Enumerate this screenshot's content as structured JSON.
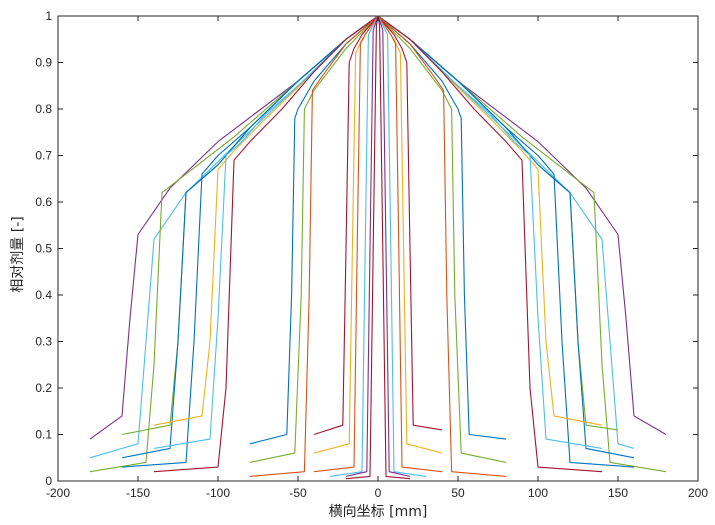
{
  "chart_data": {
    "type": "line",
    "title": "",
    "xlabel": "横向坐标 [mm]",
    "ylabel": "相对剂量 [-]",
    "xlim": [
      -200,
      200
    ],
    "ylim": [
      0,
      1
    ],
    "xticks": [
      -200,
      -150,
      -100,
      -50,
      0,
      50,
      100,
      150,
      200
    ],
    "yticks": [
      0,
      0.1,
      0.2,
      0.3,
      0.4,
      0.5,
      0.6,
      0.7,
      0.8,
      0.9,
      1
    ],
    "xtick_labels": [
      "-200",
      "-150",
      "-100",
      "-50",
      "0",
      "50",
      "100",
      "150",
      "200"
    ],
    "ytick_labels": [
      "0",
      "0.1",
      "0.2",
      "0.3",
      "0.4",
      "0.5",
      "0.6",
      "0.7",
      "0.8",
      "0.9",
      "1"
    ],
    "grid": false,
    "legend": "none",
    "colors": [
      "#0072BD",
      "#D95319",
      "#EDB120",
      "#7E2F8E",
      "#77AC30",
      "#4DBEEE",
      "#A2142F"
    ],
    "series": [
      {
        "color": "#7E2F8E",
        "x": [
          -180,
          -160,
          -155,
          -150,
          -130,
          -100,
          -50,
          -20,
          0,
          20,
          50,
          100,
          130,
          150,
          155,
          160,
          180
        ],
        "y": [
          0.09,
          0.14,
          0.35,
          0.53,
          0.63,
          0.73,
          0.86,
          0.95,
          1,
          0.95,
          0.86,
          0.73,
          0.63,
          0.53,
          0.35,
          0.14,
          0.1
        ]
      },
      {
        "color": "#4DBEEE",
        "x": [
          -180,
          -150,
          -145,
          -140,
          -120,
          -90,
          -50,
          -20,
          0,
          20,
          50,
          90,
          120,
          140,
          145,
          150,
          160
        ],
        "y": [
          0.05,
          0.08,
          0.3,
          0.52,
          0.62,
          0.72,
          0.85,
          0.95,
          1,
          0.95,
          0.85,
          0.72,
          0.62,
          0.52,
          0.3,
          0.08,
          0.07
        ]
      },
      {
        "color": "#77AC30",
        "x": [
          -180,
          -145,
          -140,
          -135,
          -120,
          -90,
          -50,
          -20,
          0,
          20,
          50,
          90,
          120,
          135,
          140,
          145,
          180
        ],
        "y": [
          0.02,
          0.04,
          0.25,
          0.62,
          0.66,
          0.74,
          0.86,
          0.95,
          1,
          0.95,
          0.86,
          0.74,
          0.66,
          0.62,
          0.25,
          0.04,
          0.02
        ]
      },
      {
        "color": "#77AC30",
        "x": [
          -160,
          -130,
          -125,
          -120,
          -100,
          -80,
          -50,
          -20,
          0,
          20,
          50,
          80,
          100,
          120,
          125,
          130,
          150
        ],
        "y": [
          0.1,
          0.12,
          0.3,
          0.62,
          0.68,
          0.76,
          0.86,
          0.95,
          1,
          0.95,
          0.86,
          0.76,
          0.68,
          0.62,
          0.3,
          0.12,
          0.11
        ]
      },
      {
        "color": "#0072BD",
        "x": [
          -160,
          -130,
          -125,
          -120,
          -100,
          -80,
          -50,
          -20,
          0,
          20,
          50,
          80,
          100,
          120,
          125,
          130,
          160
        ],
        "y": [
          0.05,
          0.07,
          0.3,
          0.62,
          0.68,
          0.76,
          0.86,
          0.95,
          1,
          0.95,
          0.86,
          0.76,
          0.68,
          0.62,
          0.3,
          0.07,
          0.05
        ]
      },
      {
        "color": "#0072BD",
        "x": [
          -160,
          -120,
          -115,
          -110,
          -100,
          -80,
          -50,
          -20,
          0,
          20,
          50,
          80,
          100,
          110,
          115,
          120,
          160
        ],
        "y": [
          0.03,
          0.04,
          0.3,
          0.66,
          0.7,
          0.76,
          0.86,
          0.95,
          1,
          0.95,
          0.86,
          0.76,
          0.7,
          0.66,
          0.3,
          0.04,
          0.03
        ]
      },
      {
        "color": "#EDB120",
        "x": [
          -140,
          -110,
          -105,
          -100,
          -90,
          -70,
          -40,
          -20,
          0,
          20,
          40,
          70,
          90,
          100,
          105,
          110,
          140
        ],
        "y": [
          0.12,
          0.14,
          0.3,
          0.67,
          0.71,
          0.78,
          0.88,
          0.95,
          1,
          0.95,
          0.88,
          0.78,
          0.71,
          0.67,
          0.3,
          0.14,
          0.12
        ]
      },
      {
        "color": "#4DBEEE",
        "x": [
          -140,
          -105,
          -100,
          -95,
          -85,
          -70,
          -40,
          -20,
          0,
          20,
          40,
          70,
          85,
          95,
          100,
          105,
          140
        ],
        "y": [
          0.07,
          0.09,
          0.35,
          0.7,
          0.73,
          0.79,
          0.88,
          0.95,
          1,
          0.95,
          0.88,
          0.79,
          0.73,
          0.7,
          0.35,
          0.09,
          0.07
        ]
      },
      {
        "color": "#A2142F",
        "x": [
          -140,
          -100,
          -95,
          -90,
          -80,
          -60,
          -40,
          -20,
          0,
          20,
          40,
          60,
          80,
          90,
          95,
          100,
          140
        ],
        "y": [
          0.02,
          0.03,
          0.2,
          0.69,
          0.73,
          0.8,
          0.88,
          0.95,
          1,
          0.95,
          0.88,
          0.8,
          0.73,
          0.69,
          0.2,
          0.03,
          0.02
        ]
      },
      {
        "color": "#0072BD",
        "x": [
          -80,
          -57,
          -54,
          -52,
          -50,
          -40,
          -20,
          0,
          20,
          40,
          50,
          52,
          54,
          57,
          80
        ],
        "y": [
          0.08,
          0.1,
          0.4,
          0.78,
          0.8,
          0.86,
          0.94,
          1,
          0.94,
          0.86,
          0.8,
          0.78,
          0.4,
          0.1,
          0.09
        ]
      },
      {
        "color": "#77AC30",
        "x": [
          -80,
          -52,
          -48,
          -46,
          -40,
          -20,
          0,
          20,
          40,
          46,
          48,
          52,
          80
        ],
        "y": [
          0.04,
          0.06,
          0.4,
          0.8,
          0.84,
          0.93,
          1,
          0.93,
          0.84,
          0.8,
          0.4,
          0.06,
          0.04
        ]
      },
      {
        "color": "#D95319",
        "x": [
          -80,
          -46,
          -43,
          -41,
          -35,
          -20,
          0,
          20,
          35,
          41,
          43,
          46,
          80
        ],
        "y": [
          0.01,
          0.02,
          0.4,
          0.84,
          0.87,
          0.94,
          1,
          0.94,
          0.87,
          0.84,
          0.4,
          0.02,
          0.01
        ]
      },
      {
        "color": "#A2142F",
        "x": [
          -40,
          -22,
          -20,
          -18,
          -15,
          -10,
          0,
          10,
          15,
          18,
          20,
          22,
          40
        ],
        "y": [
          0.1,
          0.12,
          0.5,
          0.9,
          0.93,
          0.96,
          1,
          0.96,
          0.93,
          0.9,
          0.5,
          0.12,
          0.11
        ]
      },
      {
        "color": "#EDB120",
        "x": [
          -40,
          -18,
          -16,
          -14,
          -10,
          0,
          10,
          14,
          16,
          18,
          40
        ],
        "y": [
          0.06,
          0.08,
          0.5,
          0.92,
          0.95,
          1,
          0.95,
          0.92,
          0.5,
          0.08,
          0.06
        ]
      },
      {
        "color": "#D95319",
        "x": [
          -40,
          -15,
          -13,
          -11,
          -8,
          0,
          8,
          11,
          13,
          15,
          40
        ],
        "y": [
          0.02,
          0.03,
          0.5,
          0.94,
          0.96,
          1,
          0.96,
          0.94,
          0.5,
          0.03,
          0.02
        ]
      },
      {
        "color": "#4DBEEE",
        "x": [
          -30,
          -10,
          -8,
          -6,
          0,
          6,
          8,
          10,
          30
        ],
        "y": [
          0.01,
          0.02,
          0.5,
          0.96,
          1,
          0.96,
          0.5,
          0.02,
          0.01
        ]
      },
      {
        "color": "#7E2F8E",
        "x": [
          -20,
          -7,
          -5,
          -3,
          0,
          3,
          5,
          7,
          20
        ],
        "y": [
          0.01,
          0.02,
          0.5,
          0.97,
          1,
          0.97,
          0.5,
          0.02,
          0.01
        ]
      },
      {
        "color": "#A2142F",
        "x": [
          -20,
          -5,
          -3,
          -1,
          0,
          1,
          3,
          5,
          20
        ],
        "y": [
          0.005,
          0.01,
          0.5,
          0.98,
          1,
          0.98,
          0.5,
          0.01,
          0.005
        ]
      }
    ]
  }
}
